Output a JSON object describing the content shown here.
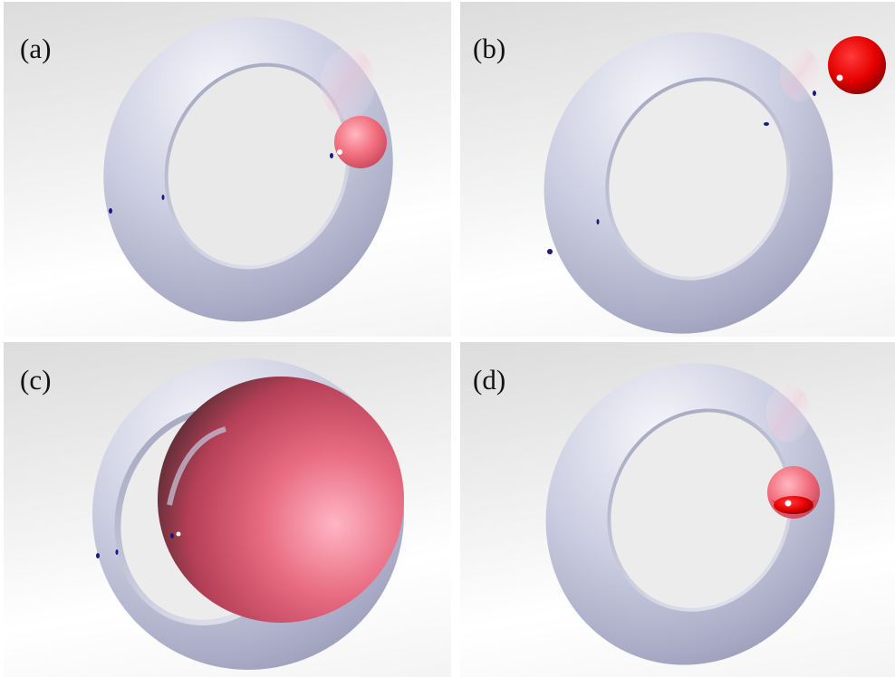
{
  "figure": {
    "panels": [
      {
        "id": "a",
        "label": "(a)"
      },
      {
        "id": "b",
        "label": "(b)"
      },
      {
        "id": "c",
        "label": "(c)"
      },
      {
        "id": "d",
        "label": "(d)"
      }
    ]
  },
  "colors": {
    "torus": "#c8cae0",
    "sphere": "#e0304a",
    "marker_dot": "#1a1a80"
  }
}
